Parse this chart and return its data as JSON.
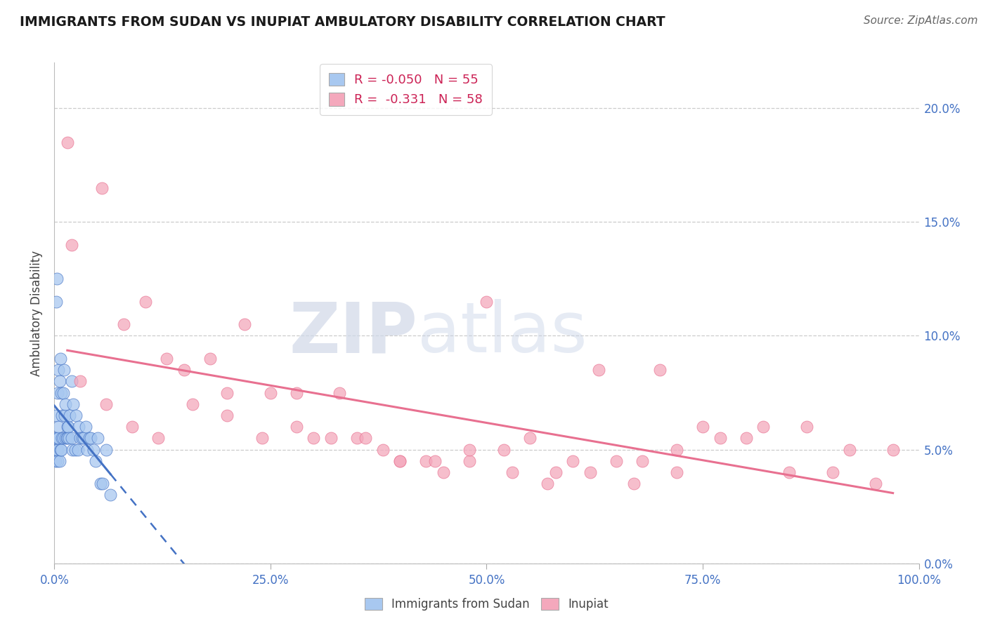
{
  "title": "IMMIGRANTS FROM SUDAN VS INUPIAT AMBULATORY DISABILITY CORRELATION CHART",
  "source": "Source: ZipAtlas.com",
  "ylabel": "Ambulatory Disability",
  "x_min": 0.0,
  "x_max": 100.0,
  "y_min": 0.0,
  "y_max": 22.0,
  "yticks": [
    0.0,
    5.0,
    10.0,
    15.0,
    20.0
  ],
  "xticks": [
    0.0,
    25.0,
    50.0,
    75.0,
    100.0
  ],
  "blue_label": "Immigrants from Sudan",
  "pink_label": "Inupiat",
  "blue_R": -0.05,
  "blue_N": 55,
  "pink_R": -0.331,
  "pink_N": 58,
  "blue_color": "#a8c8f0",
  "pink_color": "#f4a8bc",
  "blue_line_color": "#4472C4",
  "pink_line_color": "#E87090",
  "blue_scatter_x": [
    0.1,
    0.15,
    0.2,
    0.2,
    0.25,
    0.3,
    0.3,
    0.35,
    0.4,
    0.4,
    0.5,
    0.5,
    0.5,
    0.6,
    0.6,
    0.7,
    0.7,
    0.8,
    0.8,
    0.9,
    0.9,
    1.0,
    1.0,
    1.1,
    1.2,
    1.3,
    1.3,
    1.4,
    1.5,
    1.5,
    1.6,
    1.7,
    1.8,
    2.0,
    2.0,
    2.1,
    2.2,
    2.4,
    2.5,
    2.7,
    2.8,
    3.0,
    3.2,
    3.4,
    3.6,
    3.8,
    4.0,
    4.2,
    4.5,
    4.8,
    5.0,
    5.3,
    5.6,
    6.0,
    6.5
  ],
  "blue_scatter_y": [
    5.5,
    4.5,
    6.5,
    11.5,
    5.0,
    12.5,
    5.5,
    5.0,
    4.5,
    7.5,
    5.5,
    8.5,
    6.0,
    4.5,
    8.0,
    5.0,
    9.0,
    5.0,
    7.5,
    5.5,
    6.5,
    5.5,
    7.5,
    8.5,
    6.5,
    5.5,
    7.0,
    5.5,
    6.0,
    5.5,
    6.0,
    5.5,
    6.5,
    5.5,
    8.0,
    5.0,
    7.0,
    5.0,
    6.5,
    5.0,
    6.0,
    5.5,
    5.5,
    5.5,
    6.0,
    5.0,
    5.5,
    5.5,
    5.0,
    4.5,
    5.5,
    3.5,
    3.5,
    5.0,
    3.0
  ],
  "pink_scatter_x": [
    1.5,
    2.0,
    5.5,
    8.0,
    10.5,
    13.0,
    15.0,
    18.0,
    20.0,
    22.0,
    25.0,
    28.0,
    30.0,
    33.0,
    35.0,
    38.0,
    40.0,
    43.0,
    45.0,
    48.0,
    50.0,
    52.0,
    55.0,
    58.0,
    60.0,
    63.0,
    65.0,
    68.0,
    70.0,
    72.0,
    75.0,
    77.0,
    80.0,
    82.0,
    85.0,
    87.0,
    90.0,
    92.0,
    95.0,
    97.0,
    3.0,
    6.0,
    9.0,
    12.0,
    16.0,
    20.0,
    24.0,
    28.0,
    32.0,
    36.0,
    40.0,
    44.0,
    48.0,
    53.0,
    57.0,
    62.0,
    67.0,
    72.0
  ],
  "pink_scatter_y": [
    18.5,
    14.0,
    16.5,
    10.5,
    11.5,
    9.0,
    8.5,
    9.0,
    7.5,
    10.5,
    7.5,
    7.5,
    5.5,
    7.5,
    5.5,
    5.0,
    4.5,
    4.5,
    4.0,
    4.5,
    11.5,
    5.0,
    5.5,
    4.0,
    4.5,
    8.5,
    4.5,
    4.5,
    8.5,
    5.0,
    6.0,
    5.5,
    5.5,
    6.0,
    4.0,
    6.0,
    4.0,
    5.0,
    3.5,
    5.0,
    8.0,
    7.0,
    6.0,
    5.5,
    7.0,
    6.5,
    5.5,
    6.0,
    5.5,
    5.5,
    4.5,
    4.5,
    5.0,
    4.0,
    3.5,
    4.0,
    3.5,
    4.0
  ],
  "watermark_zip": "ZIP",
  "watermark_atlas": "atlas",
  "background_color": "#ffffff",
  "grid_color": "#cccccc"
}
